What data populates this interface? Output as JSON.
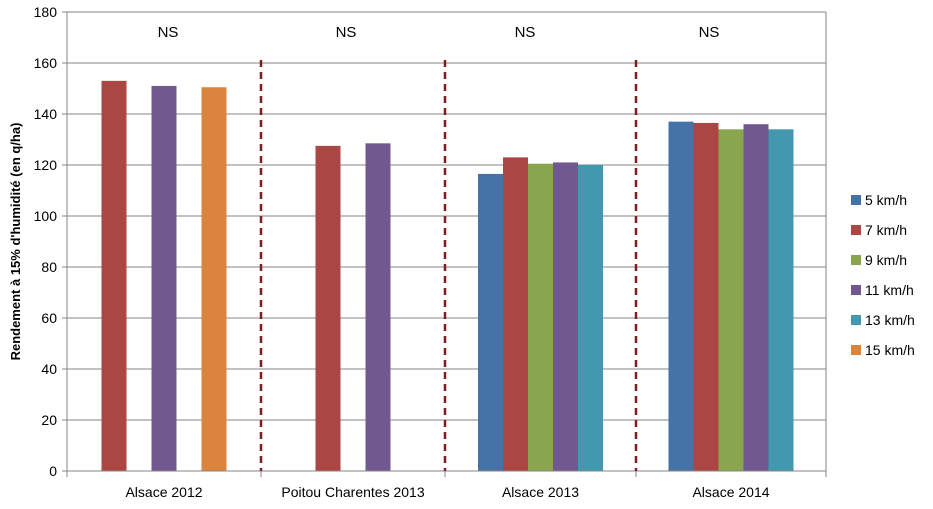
{
  "chart_data": {
    "type": "bar",
    "title": "",
    "xlabel": "",
    "ylabel": "Rendement à 15% d'humidité (en q/ha)",
    "ylim": [
      0,
      180
    ],
    "yticks": [
      0,
      20,
      40,
      60,
      80,
      100,
      120,
      140,
      160,
      180
    ],
    "grid": true,
    "legend_position": "right",
    "categories": [
      "Alsace 2012",
      "Poitou Charentes 2013",
      "Alsace 2013",
      "Alsace 2014"
    ],
    "annotations": [
      "NS",
      "NS",
      "NS",
      "NS"
    ],
    "series": [
      {
        "name": "5 km/h",
        "color": "#4572A7",
        "values": [
          null,
          null,
          116.5,
          137
        ]
      },
      {
        "name": "7 km/h",
        "color": "#AA4643",
        "values": [
          153,
          127.5,
          123,
          136.5
        ]
      },
      {
        "name": "9 km/h",
        "color": "#89A54E",
        "values": [
          null,
          null,
          120.5,
          134
        ]
      },
      {
        "name": "11 km/h",
        "color": "#71588F",
        "values": [
          151,
          128.5,
          121,
          136
        ]
      },
      {
        "name": "13 km/h",
        "color": "#4198AF",
        "values": [
          null,
          null,
          120,
          134
        ]
      },
      {
        "name": "15 km/h",
        "color": "#DB843D",
        "values": [
          150.5,
          null,
          null,
          null
        ]
      }
    ],
    "separators": {
      "color": "#7B1F1F",
      "style": "dashed"
    }
  }
}
